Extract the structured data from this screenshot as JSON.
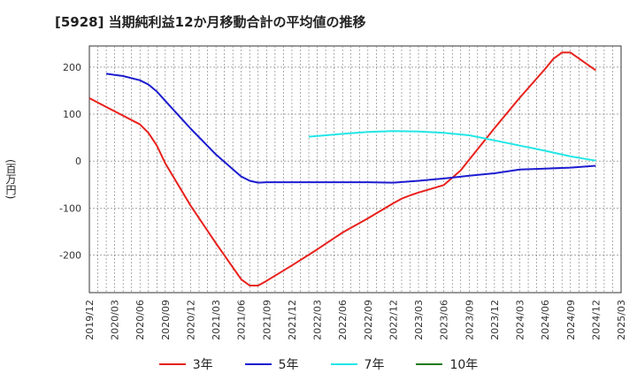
{
  "chart_data": {
    "type": "line",
    "title": "[5928]  当期純利益12か月移動合計の平均値の推移",
    "ylabel": "(百万円)",
    "ylim": [
      -280,
      245
    ],
    "yticks": [
      200,
      100,
      0,
      -100,
      -200
    ],
    "ytick_labels": [
      "200",
      "100",
      "0",
      "-100",
      "-200"
    ],
    "grid": true,
    "legend_placement": "bottom",
    "x_ticks": [
      "2019/12",
      "2020/03",
      "2020/06",
      "2020/09",
      "2020/12",
      "2021/03",
      "2021/06",
      "2021/09",
      "2021/12",
      "2022/03",
      "2022/06",
      "2022/09",
      "2022/12",
      "2023/03",
      "2023/06",
      "2023/09",
      "2023/12",
      "2024/03",
      "2024/06",
      "2024/09",
      "2024/12",
      "2025/03"
    ],
    "x_months": [
      "2019/12",
      "2020/01",
      "2020/02",
      "2020/03",
      "2020/04",
      "2020/05",
      "2020/06",
      "2020/07",
      "2020/08",
      "2020/09",
      "2020/10",
      "2020/11",
      "2020/12",
      "2021/01",
      "2021/02",
      "2021/03",
      "2021/04",
      "2021/05",
      "2021/06",
      "2021/07",
      "2021/08",
      "2021/09",
      "2021/10",
      "2021/11",
      "2021/12",
      "2022/01",
      "2022/02",
      "2022/03",
      "2022/04",
      "2022/05",
      "2022/06",
      "2022/07",
      "2022/08",
      "2022/09",
      "2022/10",
      "2022/11",
      "2022/12",
      "2023/01",
      "2023/02",
      "2023/03",
      "2023/04",
      "2023/05",
      "2023/06",
      "2023/07",
      "2023/08",
      "2023/09",
      "2023/10",
      "2023/11",
      "2023/12",
      "2024/01",
      "2024/02",
      "2024/03",
      "2024/04",
      "2024/05",
      "2024/06",
      "2024/07",
      "2024/08",
      "2024/09",
      "2024/10",
      "2024/11",
      "2024/12",
      "2025/01",
      "2025/02",
      "2025/03"
    ],
    "series": [
      {
        "name": "3年",
        "color": "#e8211c",
        "points": [
          [
            "2019/12",
            134
          ],
          [
            "2020/03",
            106
          ],
          [
            "2020/06",
            78
          ],
          [
            "2020/07",
            60
          ],
          [
            "2020/08",
            33
          ],
          [
            "2020/09",
            -5
          ],
          [
            "2020/12",
            -95
          ],
          [
            "2021/03",
            -175
          ],
          [
            "2021/06",
            -252
          ],
          [
            "2021/07",
            -265
          ],
          [
            "2021/08",
            -265
          ],
          [
            "2021/09",
            -255
          ],
          [
            "2021/12",
            -222
          ],
          [
            "2022/03",
            -188
          ],
          [
            "2022/06",
            -152
          ],
          [
            "2022/09",
            -122
          ],
          [
            "2022/12",
            -90
          ],
          [
            "2023/01",
            -80
          ],
          [
            "2023/02",
            -73
          ],
          [
            "2023/03",
            -67
          ],
          [
            "2023/06",
            -51
          ],
          [
            "2023/08",
            -20
          ],
          [
            "2023/09",
            3
          ],
          [
            "2023/12",
            70
          ],
          [
            "2024/03",
            135
          ],
          [
            "2024/06",
            196
          ],
          [
            "2024/07",
            218
          ],
          [
            "2024/08",
            231
          ],
          [
            "2024/09",
            231
          ],
          [
            "2024/12",
            193
          ]
        ]
      },
      {
        "name": "5年",
        "color": "#1c1cd0",
        "points": [
          [
            "2020/02",
            186
          ],
          [
            "2020/04",
            181
          ],
          [
            "2020/06",
            172
          ],
          [
            "2020/07",
            163
          ],
          [
            "2020/08",
            148
          ],
          [
            "2020/09",
            128
          ],
          [
            "2020/12",
            69
          ],
          [
            "2021/03",
            14
          ],
          [
            "2021/06",
            -33
          ],
          [
            "2021/07",
            -42
          ],
          [
            "2021/08",
            -46
          ],
          [
            "2021/09",
            -45
          ],
          [
            "2021/12",
            -45
          ],
          [
            "2022/03",
            -45
          ],
          [
            "2022/06",
            -45
          ],
          [
            "2022/09",
            -45
          ],
          [
            "2022/12",
            -46
          ],
          [
            "2023/03",
            -42
          ],
          [
            "2023/06",
            -37
          ],
          [
            "2023/09",
            -31
          ],
          [
            "2023/12",
            -26
          ],
          [
            "2024/03",
            -18
          ],
          [
            "2024/06",
            -16
          ],
          [
            "2024/09",
            -14
          ],
          [
            "2024/12",
            -10
          ]
        ]
      },
      {
        "name": "7年",
        "color": "#22e6e6",
        "points": [
          [
            "2022/02",
            52
          ],
          [
            "2022/06",
            58
          ],
          [
            "2022/09",
            62
          ],
          [
            "2022/12",
            64
          ],
          [
            "2023/03",
            63
          ],
          [
            "2023/06",
            60
          ],
          [
            "2023/09",
            55
          ],
          [
            "2023/12",
            44
          ],
          [
            "2024/03",
            33
          ],
          [
            "2024/06",
            22
          ],
          [
            "2024/09",
            10
          ],
          [
            "2024/12",
            1
          ]
        ]
      },
      {
        "name": "10年",
        "color": "#1f7a1f",
        "points": []
      }
    ]
  }
}
